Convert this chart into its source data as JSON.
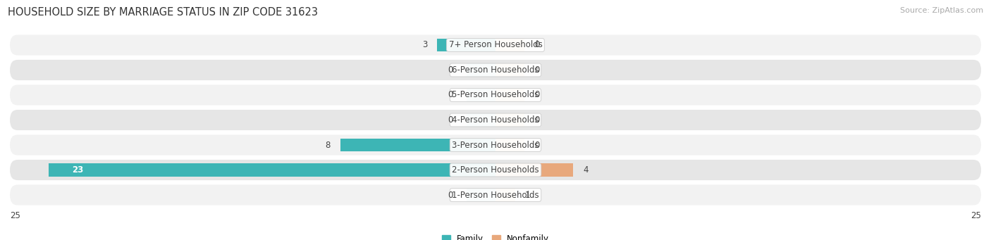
{
  "title": "HOUSEHOLD SIZE BY MARRIAGE STATUS IN ZIP CODE 31623",
  "source": "Source: ZipAtlas.com",
  "categories": [
    "1-Person Households",
    "2-Person Households",
    "3-Person Households",
    "4-Person Households",
    "5-Person Households",
    "6-Person Households",
    "7+ Person Households"
  ],
  "family_values": [
    0,
    23,
    8,
    0,
    0,
    0,
    3
  ],
  "nonfamily_values": [
    1,
    4,
    0,
    0,
    0,
    0,
    0
  ],
  "family_color": "#3db5b5",
  "nonfamily_color": "#e8a87c",
  "nonfamily_color_dim": "#f0c9a0",
  "row_bg_light": "#f2f2f2",
  "row_bg_dark": "#e6e6e6",
  "xlim": 25,
  "legend_family": "Family",
  "legend_nonfamily": "Nonfamily",
  "title_fontsize": 10.5,
  "source_fontsize": 8,
  "label_fontsize": 8.5,
  "value_fontsize": 8.5,
  "bar_height": 0.52
}
